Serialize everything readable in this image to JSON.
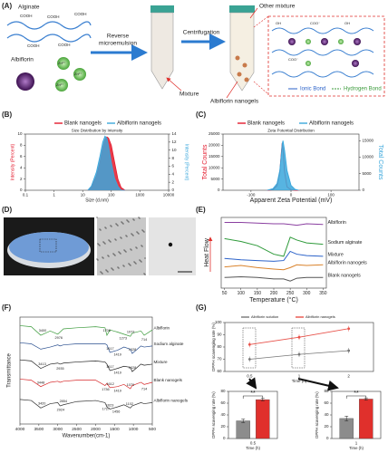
{
  "panels": [
    "(A)",
    "(B)",
    "(C)",
    "(D)",
    "(E)",
    "(F)",
    "(G)"
  ],
  "diagram": {
    "alginate": "Alginate",
    "cooh": "COOH",
    "albiflorin": "Albiflorin",
    "zn": "Zn²⁺",
    "reverse": [
      "Reverse",
      "microemulsion"
    ],
    "centrifugation": "Centrifugation",
    "mixture": "Mixture",
    "other_mixture": "Other mixture",
    "nanogels": "Albiflorin nanogels",
    "ionic": "Ionic Bond",
    "hydrogen": "Hydrogen Bond",
    "coo": "COO⁻",
    "oh": "OH"
  },
  "chart_data": [
    {
      "type": "line",
      "title": "Size Distribution by Intensity",
      "xlabel": "Size (d.nm)",
      "ylabel": "Intensity (Percent)",
      "y2label": "Intensity (Percent)",
      "xscale": "log",
      "xlim": [
        0.1,
        10000
      ],
      "xticks": [
        0.1,
        1,
        10,
        100,
        1000,
        10000
      ],
      "ylim": [
        0,
        10
      ],
      "yticks": [
        0,
        2,
        4,
        6,
        8,
        10
      ],
      "y2lim": [
        0,
        14
      ],
      "y2ticks": [
        0,
        2,
        4,
        6,
        8,
        10,
        12,
        14
      ],
      "legend": "top",
      "series": [
        {
          "name": "Blank nanogels",
          "color": "#e41a2c",
          "fill": true,
          "x": [
            15,
            20,
            30,
            40,
            50,
            60,
            70,
            80,
            100,
            130,
            170,
            220,
            300
          ],
          "values": [
            0,
            0.5,
            2.5,
            5,
            7.5,
            9,
            9.5,
            9.3,
            8,
            5,
            2,
            0.5,
            0
          ]
        },
        {
          "name": "Albiflorin nanogels",
          "color": "#3aa7dc",
          "fill": true,
          "axis": "y2",
          "x": [
            15,
            20,
            30,
            40,
            50,
            60,
            70,
            80,
            100,
            130,
            170,
            220,
            300
          ],
          "values": [
            0,
            1,
            4.5,
            8.5,
            12,
            13.5,
            13,
            11,
            7,
            3,
            1,
            0,
            0
          ]
        }
      ]
    },
    {
      "type": "line",
      "title": "Zeta Potential Distribution",
      "xlabel": "Apparent Zeta Potential (mV)",
      "ylabel": "Total Counts",
      "y2label": "Total Counts",
      "xlim": [
        -170,
        170
      ],
      "xticks": [
        -100,
        0,
        100
      ],
      "ylim": [
        0,
        25000
      ],
      "yticks": [
        0,
        5000,
        10000,
        15000,
        20000,
        25000
      ],
      "y2lim": [
        0,
        17000
      ],
      "y2ticks": [
        0,
        5000,
        10000,
        15000
      ],
      "legend": "top",
      "series": [
        {
          "name": "Blank nanogels",
          "color": "#e41a2c",
          "fill": false,
          "x": [
            -60,
            -45,
            -35,
            -28,
            -24,
            -22,
            -20,
            -16,
            -10,
            0,
            10,
            20
          ],
          "values": [
            0,
            200,
            2000,
            8000,
            17000,
            21000,
            18000,
            8000,
            1500,
            200,
            0,
            0
          ]
        },
        {
          "name": "Albiflorin nanogels",
          "color": "#3aa7dc",
          "fill": true,
          "axis": "y2",
          "x": [
            -60,
            -45,
            -35,
            -28,
            -24,
            -22,
            -20,
            -16,
            -10,
            0,
            10,
            20
          ],
          "values": [
            0,
            500,
            2000,
            6000,
            11000,
            14000,
            15000,
            12000,
            6000,
            1500,
            300,
            0
          ]
        }
      ]
    },
    {
      "type": "line",
      "xlabel": "Temperature (°C)",
      "ylabel": "Heat Flow",
      "xlim": [
        40,
        360
      ],
      "xticks": [
        50,
        100,
        150,
        200,
        250,
        300,
        350
      ],
      "ylim": [
        0,
        10
      ],
      "legend": "inline",
      "series": [
        {
          "name": "Albiflorin",
          "color": "#8a3fa0",
          "x": [
            50,
            100,
            150,
            200,
            230,
            250,
            270,
            300,
            350
          ],
          "values": [
            9.3,
            9.3,
            9.2,
            9.1,
            9.1,
            9.0,
            8.9,
            9.1,
            9.0
          ]
        },
        {
          "name": "Sodium alginate",
          "color": "#2e9a3a",
          "x": [
            50,
            100,
            150,
            200,
            230,
            250,
            270,
            300,
            350
          ],
          "values": [
            7.0,
            6.6,
            6.0,
            4.8,
            4.5,
            7.2,
            6.8,
            6.4,
            6.2
          ]
        },
        {
          "name": "Mixture",
          "color": "#2b62c9",
          "x": [
            50,
            100,
            150,
            200,
            230,
            250,
            270,
            300,
            350
          ],
          "values": [
            4.2,
            4.0,
            3.9,
            3.8,
            3.9,
            5.2,
            4.8,
            4.6,
            4.5
          ]
        },
        {
          "name": "Albiflorin nanogels",
          "color": "#d9822b",
          "x": [
            50,
            100,
            150,
            200,
            230,
            250,
            270,
            300,
            350
          ],
          "values": [
            3.0,
            3.2,
            2.9,
            2.7,
            2.6,
            2.9,
            3.3,
            3.2,
            3.3
          ]
        },
        {
          "name": "Blank nanogels",
          "color": "#555555",
          "x": [
            50,
            100,
            150,
            200,
            230,
            250,
            270,
            300,
            350
          ],
          "values": [
            1.5,
            1.6,
            1.5,
            1.3,
            1.3,
            1.0,
            1.4,
            1.5,
            1.5
          ]
        }
      ]
    },
    {
      "type": "line",
      "xlabel": "Wavenumber(cm-1)",
      "ylabel": "Transmittance",
      "xlim": [
        4000,
        500
      ],
      "xticks": [
        4000,
        3500,
        3000,
        2500,
        2000,
        1500,
        1000,
        500
      ],
      "ylim": [
        0,
        10
      ],
      "legend": "inline",
      "series": [
        {
          "name": "Albiflorin",
          "color": "#3a9a3a",
          "x": [
            4000,
            3700,
            3450,
            3200,
            3000,
            2940,
            2850,
            2500,
            2000,
            1750,
            1700,
            1620,
            1420,
            1250,
            1080,
            1030,
            800,
            714,
            500
          ],
          "values": [
            9.2,
            9.1,
            8.3,
            8.7,
            8.4,
            8.6,
            8.9,
            9.0,
            9.1,
            9.0,
            8.3,
            8.8,
            8.6,
            8.4,
            8.2,
            8.5,
            8.7,
            8.3,
            8.8
          ],
          "peaks": [
            3400,
            2976,
            1706,
            1273,
            1073,
            714
          ]
        },
        {
          "name": "Sodium alginate",
          "color": "#2a4f8f",
          "x": [
            4000,
            3700,
            3450,
            3200,
            3000,
            2940,
            2850,
            2500,
            2000,
            1750,
            1700,
            1620,
            1420,
            1250,
            1080,
            1030,
            800,
            714,
            500
          ],
          "values": [
            7.6,
            7.5,
            7.0,
            7.2,
            7.4,
            7.3,
            7.4,
            7.5,
            7.5,
            7.5,
            7.4,
            6.7,
            6.9,
            7.2,
            7.0,
            6.6,
            7.3,
            7.2,
            7.3
          ],
          "peaks": [
            1617,
            1419,
            1028
          ]
        },
        {
          "name": "Mixture",
          "color": "#222222",
          "x": [
            4000,
            3700,
            3450,
            3200,
            3000,
            2940,
            2850,
            2500,
            2000,
            1750,
            1700,
            1620,
            1420,
            1250,
            1080,
            1030,
            800,
            714,
            500
          ],
          "values": [
            6.0,
            5.9,
            5.2,
            5.6,
            5.7,
            5.6,
            5.7,
            5.8,
            5.9,
            5.8,
            5.6,
            5.0,
            5.2,
            5.4,
            5.3,
            4.9,
            5.6,
            5.5,
            5.6
          ],
          "peaks": [
            3413,
            2935,
            1617,
            1419,
            1028
          ]
        },
        {
          "name": "Blank nanogels",
          "color": "#d62728",
          "x": [
            4000,
            3700,
            3450,
            3200,
            3000,
            2940,
            2850,
            2500,
            2000,
            1750,
            1700,
            1620,
            1420,
            1250,
            1080,
            1030,
            800,
            714,
            500
          ],
          "values": [
            4.2,
            4.1,
            3.5,
            3.9,
            4.0,
            3.9,
            4.0,
            4.1,
            4.1,
            3.6,
            3.8,
            3.4,
            3.5,
            3.7,
            3.3,
            3.6,
            3.9,
            3.7,
            3.9
          ],
          "peaks": [
            3448,
            1736,
            1612,
            1419,
            1079,
            714
          ]
        },
        {
          "name": "Albiflorin nanogels",
          "color": "#333333",
          "x": [
            4000,
            3700,
            3450,
            3200,
            3000,
            2940,
            2850,
            2500,
            2000,
            1750,
            1700,
            1620,
            1420,
            1250,
            1080,
            1030,
            800,
            714,
            500
          ],
          "values": [
            2.3,
            2.2,
            1.5,
            1.9,
            2.0,
            1.7,
            1.8,
            2.1,
            2.2,
            2.0,
            1.6,
            1.4,
            1.6,
            1.8,
            1.5,
            1.7,
            2.0,
            1.9,
            2.0
          ],
          "peaks": [
            3420,
            2924,
            2854,
            1727,
            1623,
            1456,
            1102
          ]
        }
      ]
    },
    {
      "type": "line",
      "xlabel": "Time (h)",
      "ylabel": "DPPH scavenging rate (%)",
      "categories": [
        "0.5",
        "1",
        "2"
      ],
      "ylim": [
        60,
        100
      ],
      "yticks": [
        60,
        70,
        80,
        90,
        100
      ],
      "legend": "top",
      "markers": true,
      "series": [
        {
          "name": "Albiflorin solution",
          "color": "#777777",
          "values": [
            70,
            74,
            77
          ]
        },
        {
          "name": "Albiflorin nanogels",
          "color": "#e8524a",
          "values": [
            82,
            88,
            95
          ]
        }
      ]
    },
    {
      "type": "bar",
      "xlabel": "Time (h)",
      "ylabel": "DPPH scavenging rate (%)",
      "categories": [
        "0.5"
      ],
      "ylim": [
        0,
        80
      ],
      "yticks": [
        0,
        20,
        40,
        60,
        80
      ],
      "annotation": "**",
      "series": [
        {
          "color": "#8c8c8c",
          "values": [
            30
          ],
          "errors": [
            3
          ]
        },
        {
          "color": "#e0302c",
          "values": [
            66
          ],
          "errors": [
            2
          ]
        }
      ]
    },
    {
      "type": "bar",
      "xlabel": "Time (h)",
      "ylabel": "DPPH scavenging rate (%)",
      "categories": [
        "1"
      ],
      "ylim": [
        0,
        80
      ],
      "yticks": [
        0,
        20,
        40,
        60,
        80
      ],
      "annotation": "**",
      "series": [
        {
          "color": "#8c8c8c",
          "values": [
            34
          ],
          "errors": [
            4
          ]
        },
        {
          "color": "#e0302c",
          "values": [
            67
          ],
          "errors": [
            2
          ]
        }
      ]
    }
  ]
}
